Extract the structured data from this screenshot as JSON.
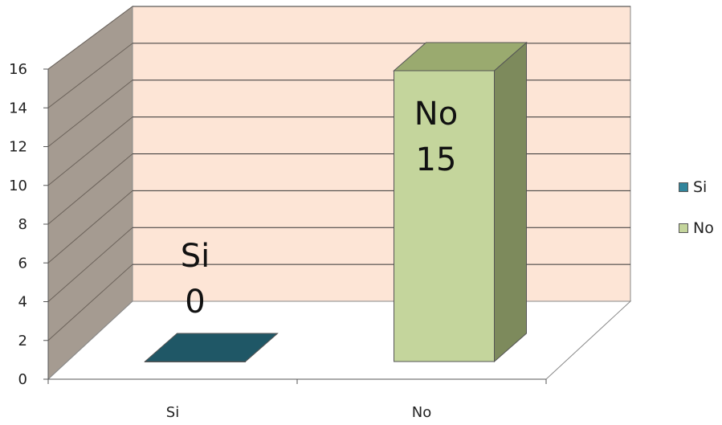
{
  "chart_data": {
    "type": "bar",
    "style": "3d-column",
    "categories": [
      "Si",
      "No"
    ],
    "values": [
      0,
      15
    ],
    "data_labels": [
      {
        "category": "Si",
        "value": "0"
      },
      {
        "category": "No",
        "value": "15"
      }
    ],
    "colors": [
      "#1f5766",
      "#c4d59c"
    ],
    "ylim": [
      0,
      16
    ],
    "yticks": [
      0,
      2,
      4,
      6,
      8,
      10,
      12,
      14,
      16
    ],
    "grid": true,
    "legend": {
      "placement": "right",
      "entries": [
        {
          "label": "Si",
          "color": "#31859c"
        },
        {
          "label": "No",
          "color": "#c4d59c"
        }
      ]
    },
    "wall_color": "#fde5d6",
    "side_wall_color": "#a59b91"
  }
}
